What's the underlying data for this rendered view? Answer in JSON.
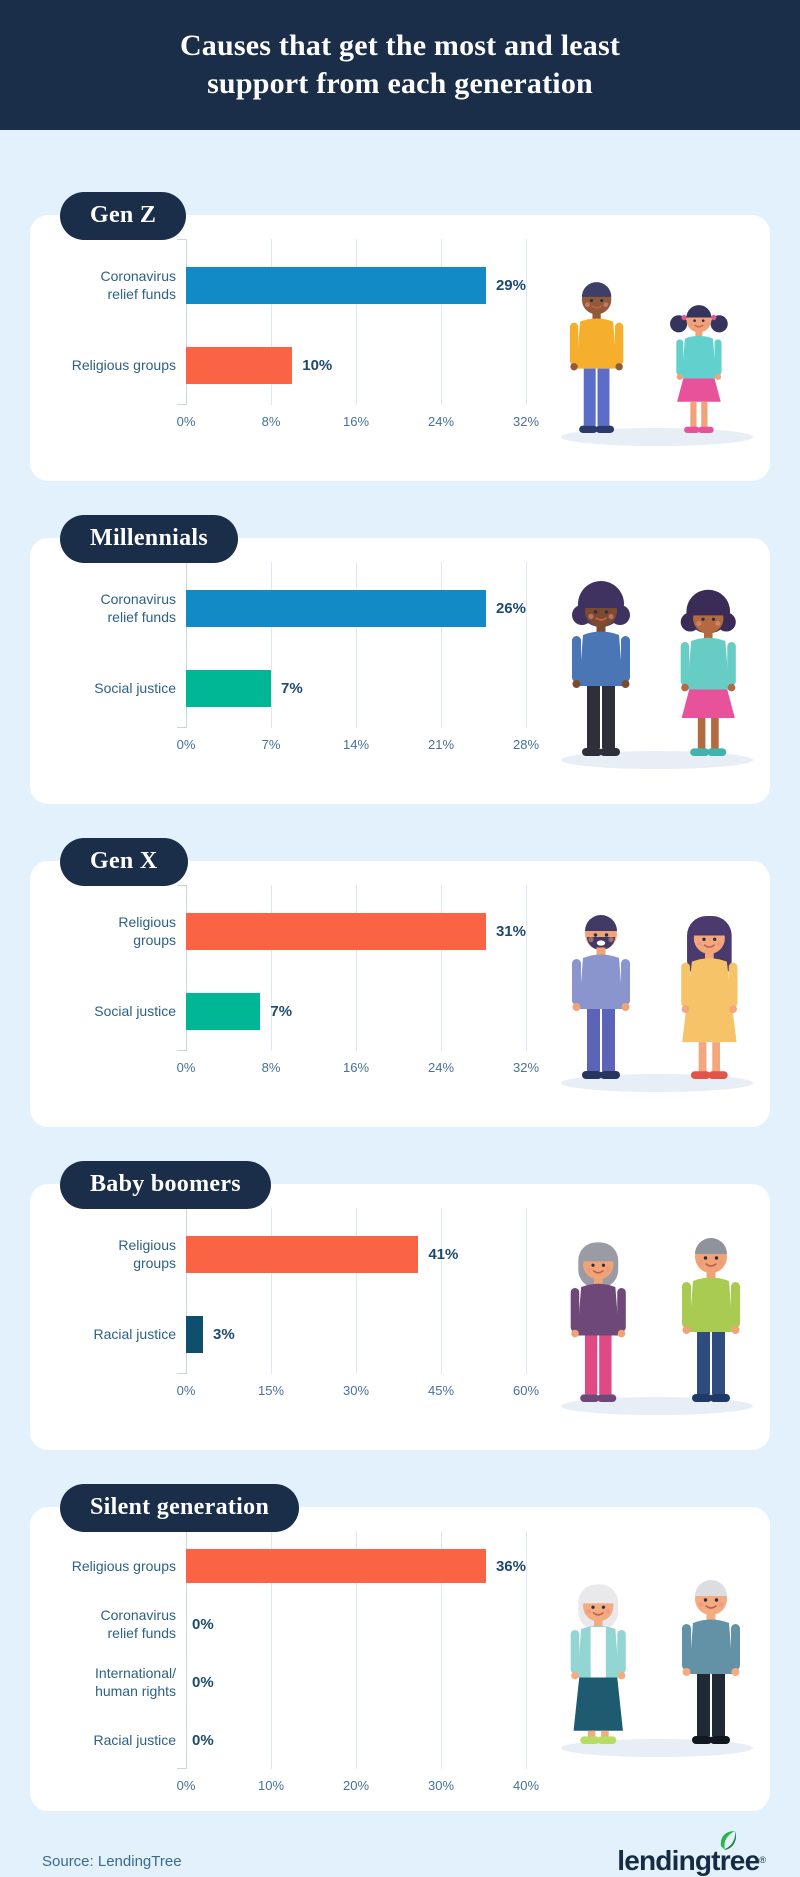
{
  "header": {
    "title": "Causes that get the most and least\nsupport from each generation"
  },
  "chart_data": [
    {
      "type": "bar",
      "generation": "Gen Z",
      "categories": [
        "Coronavirus relief funds",
        "Religious groups"
      ],
      "categories_display": [
        "Coronavirus\nrelief funds",
        "Religious groups"
      ],
      "values": [
        29,
        10
      ],
      "value_labels": [
        "29%",
        "10%"
      ],
      "bar_colors": [
        "#128AC6",
        "#FA6444"
      ],
      "x_ticks": [
        "0%",
        "8%",
        "16%",
        "24%",
        "32%"
      ],
      "xlim": [
        0,
        32
      ],
      "grid": true,
      "orientation": "horizontal"
    },
    {
      "type": "bar",
      "generation": "Millennials",
      "categories": [
        "Coronavirus relief funds",
        "Social justice"
      ],
      "categories_display": [
        "Coronavirus\nrelief funds",
        "Social justice"
      ],
      "values": [
        26,
        7
      ],
      "value_labels": [
        "26%",
        "7%"
      ],
      "bar_colors": [
        "#128AC6",
        "#00B795"
      ],
      "x_ticks": [
        "0%",
        "7%",
        "14%",
        "21%",
        "28%"
      ],
      "xlim": [
        0,
        28
      ],
      "grid": true,
      "orientation": "horizontal"
    },
    {
      "type": "bar",
      "generation": "Gen X",
      "categories": [
        "Religious groups",
        "Social justice"
      ],
      "categories_display": [
        "Religious\ngroups",
        "Social justice"
      ],
      "values": [
        31,
        7
      ],
      "value_labels": [
        "31%",
        "7%"
      ],
      "bar_colors": [
        "#FA6444",
        "#00B795"
      ],
      "x_ticks": [
        "0%",
        "8%",
        "16%",
        "24%",
        "32%"
      ],
      "xlim": [
        0,
        32
      ],
      "grid": true,
      "orientation": "horizontal"
    },
    {
      "type": "bar",
      "generation": "Baby boomers",
      "categories": [
        "Religious groups",
        "Racial justice"
      ],
      "categories_display": [
        "Religious\ngroups",
        "Racial justice"
      ],
      "values": [
        41,
        3
      ],
      "value_labels": [
        "41%",
        "3%"
      ],
      "bar_colors": [
        "#FA6444",
        "#0E4F6E"
      ],
      "x_ticks": [
        "0%",
        "15%",
        "30%",
        "45%",
        "60%"
      ],
      "xlim": [
        0,
        60
      ],
      "grid": true,
      "orientation": "horizontal"
    },
    {
      "type": "bar",
      "generation": "Silent generation",
      "categories": [
        "Religious groups",
        "Coronavirus relief funds",
        "International/human rights",
        "Racial justice"
      ],
      "categories_display": [
        "Religious groups",
        "Coronavirus\nrelief funds",
        "International/\nhuman rights",
        "Racial justice"
      ],
      "values": [
        36,
        0,
        0,
        0
      ],
      "value_labels": [
        "36%",
        "0%",
        "0%",
        "0%"
      ],
      "bar_colors": [
        "#FA6444",
        "#128AC6",
        "#00B795",
        "#0E4F6E"
      ],
      "x_ticks": [
        "0%",
        "10%",
        "20%",
        "30%",
        "40%"
      ],
      "xlim": [
        0,
        40
      ],
      "grid": true,
      "orientation": "horizontal"
    }
  ],
  "illustrations": [
    {
      "name": "gen-z-kids",
      "couple": [
        {
          "skin": "#925a36",
          "hair": "#3d3f68",
          "hairstyle": "short",
          "top": "#f5af2d",
          "bottom": "#5c6cc9",
          "bottomStyle": "pants",
          "shoes": "#2c3a6b",
          "scale": 0.92
        },
        {
          "skin": "#f0a379",
          "hair": "#35345d",
          "hairstyle": "pigtails",
          "tie": "#e8529a",
          "top": "#62d1cd",
          "bottom": "#e8529a",
          "bottomStyle": "skirt",
          "shoes": "#e8529a",
          "scale": 0.78
        }
      ]
    },
    {
      "name": "millennial-women",
      "couple": [
        {
          "skin": "#7c4b2f",
          "hair": "#3f3260",
          "hairstyle": "puff",
          "top": "#4a76b5",
          "bottom": "#2f2f3a",
          "bottomStyle": "pants",
          "shoes": "#2f2f3a",
          "scale": 1.0
        },
        {
          "skin": "#b26a41",
          "hair": "#3a2c56",
          "hairstyle": "puff",
          "top": "#67ccc4",
          "bottom": "#e8529a",
          "bottomStyle": "skirt",
          "shoes": "#3fb3ac",
          "scale": 0.95
        }
      ]
    },
    {
      "name": "gen-x-couple",
      "couple": [
        {
          "skin": "#f0a476",
          "hair": "#423a66",
          "hairstyle": "short",
          "beard": true,
          "top": "#8a94cd",
          "bottom": "#5c64b8",
          "bottomStyle": "pants",
          "shoes": "#27355f",
          "scale": 1.0
        },
        {
          "skin": "#f2a87c",
          "hair": "#4a3a6e",
          "hairstyle": "long",
          "top": "#f6c368",
          "bottom": "#f6c368",
          "bottomStyle": "dress",
          "shoes": "#e25449",
          "scale": 0.97
        }
      ]
    },
    {
      "name": "baby-boomer-couple",
      "couple": [
        {
          "skin": "#f0a476",
          "hair": "#9b9ba6",
          "hairstyle": "bob",
          "top": "#6e4878",
          "bottom": "#e04a84",
          "bottomStyle": "pants",
          "shoes": "#6e4878",
          "scale": 0.95
        },
        {
          "skin": "#f0a476",
          "hair": "#90939e",
          "hairstyle": "short",
          "top": "#aacb52",
          "bottom": "#2d4d7e",
          "bottomStyle": "pants",
          "shoes": "#1e3a66",
          "scale": 1.0
        }
      ]
    },
    {
      "name": "silent-generation-couple",
      "couple": [
        {
          "skin": "#f3ac80",
          "hair": "#e9e9ec",
          "hairstyle": "bob",
          "top": "#92d5d2",
          "top2": "#ffffff",
          "bottom": "#1f5b70",
          "bottomStyle": "longskirt",
          "shoes": "#b7dc63",
          "scale": 0.95
        },
        {
          "skin": "#f3ac80",
          "hair": "#dcdde1",
          "hairstyle": "short",
          "top": "#6392a7",
          "bottom": "#202a36",
          "bottomStyle": "pants",
          "shoes": "#11181f",
          "scale": 1.0
        }
      ]
    }
  ],
  "footer": {
    "source": "Source: LendingTree",
    "logo_text": "lendingtree",
    "logo_reg": "®"
  },
  "style_colors": {
    "header_bg": "#1a2e49",
    "page_bg": "#e2f1fc",
    "card_bg": "#ffffff",
    "bar_blue": "#128AC6",
    "bar_orange": "#FA6444",
    "bar_teal": "#00B795",
    "bar_navy": "#0E4F6E",
    "label_text": "#2e6182",
    "value_text": "#1d4a6e",
    "tick_text": "#47719a",
    "logo_green": "#2CB34A",
    "logo_navy": "#152c44",
    "shadow": "#e8eef5"
  }
}
